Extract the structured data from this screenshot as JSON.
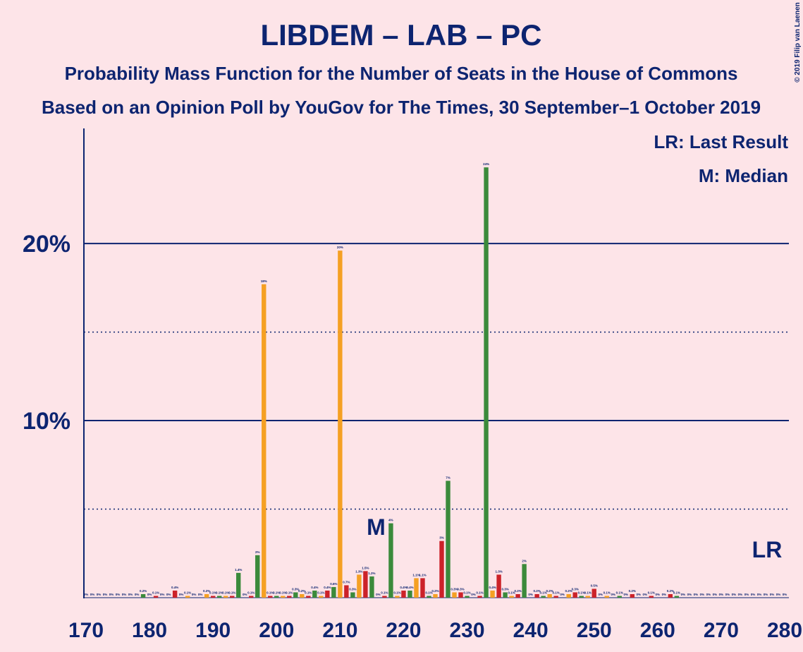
{
  "chart_data": {
    "type": "bar",
    "title": "LIBDEM – LAB – PC",
    "subtitle": "Probability Mass Function for the Number of Seats in the House of Commons",
    "subtitle2": "Based on an Opinion Poll by YouGov for The Times, 30 September–1 October 2019",
    "copyright": "© 2019 Filip van Laenen",
    "legend_lr": "LR: Last Result",
    "legend_median": "M: Median",
    "median": {
      "x": 216,
      "label": "M"
    },
    "last_result": {
      "x": 277,
      "label": "LR"
    },
    "x": [
      170,
      171,
      172,
      173,
      174,
      175,
      176,
      177,
      178,
      179,
      180,
      181,
      182,
      183,
      184,
      185,
      186,
      187,
      188,
      189,
      190,
      191,
      192,
      193,
      194,
      195,
      196,
      197,
      198,
      199,
      200,
      201,
      202,
      203,
      204,
      205,
      206,
      207,
      208,
      209,
      210,
      211,
      212,
      213,
      214,
      215,
      216,
      217,
      218,
      219,
      220,
      221,
      222,
      223,
      224,
      225,
      226,
      227,
      228,
      229,
      230,
      231,
      232,
      233,
      234,
      235,
      236,
      237,
      238,
      239,
      240,
      241,
      242,
      243,
      244,
      245,
      246,
      247,
      248,
      249,
      250,
      251,
      252,
      253,
      254,
      255,
      256,
      257,
      258,
      259,
      260,
      261,
      262,
      263,
      264,
      265,
      266,
      267,
      268,
      269,
      270,
      271,
      272,
      273,
      274,
      275,
      276,
      277,
      278,
      279,
      280
    ],
    "values": [
      0,
      0,
      0,
      0,
      0,
      0,
      0,
      0,
      0,
      0.2,
      0,
      0.1,
      0,
      0,
      0.4,
      0,
      0.1,
      0,
      0,
      0.2,
      0.1,
      0.1,
      0.1,
      0.1,
      1.4,
      0,
      0.1,
      2.4,
      17.7,
      0.1,
      0.1,
      0.1,
      0.1,
      0.3,
      0.2,
      0.1,
      0.4,
      0.1,
      0.4,
      0.6,
      19.6,
      0.7,
      0.3,
      1.3,
      1.5,
      1.2,
      0,
      0.1,
      4.2,
      0.1,
      0.4,
      0.4,
      1.1,
      1.1,
      0.1,
      0.2,
      3.2,
      6.6,
      0.3,
      0.3,
      0.1,
      0,
      0.1,
      24.3,
      0.4,
      1.3,
      0.3,
      0.1,
      0.2,
      1.9,
      0,
      0.2,
      0.1,
      0.2,
      0.1,
      0,
      0.2,
      0.3,
      0.1,
      0.1,
      0.5,
      0,
      0.1,
      0,
      0.1,
      0,
      0.2,
      0,
      0,
      0.1,
      0,
      0,
      0.2,
      0.1,
      0,
      0,
      0,
      0,
      0,
      0,
      0,
      0,
      0,
      0,
      0,
      0,
      0,
      0,
      0,
      0,
      0
    ],
    "value_labels": [
      "0%",
      "0%",
      "0%",
      "0%",
      "0%",
      "0%",
      "0%",
      "0%",
      "0%",
      "0.2%",
      "0%",
      "0.1%",
      "0%",
      "0%",
      "0.4%",
      "0%",
      "0.1%",
      "0%",
      "0%",
      "0.2%",
      "0.1%",
      "0.1%",
      "0.1%",
      "0.1%",
      "1.4%",
      "0%",
      "0.1%",
      "2%",
      "18%",
      "0.1%",
      "0.1%",
      "0.1%",
      "0.1%",
      "0.3%",
      "0.2%",
      "0.1%",
      "0.4%",
      "0.1%",
      "0.4%",
      "0.6%",
      "20%",
      "0.7%",
      "0.3%",
      "1.3%",
      "1.5%",
      "1.2%",
      "0%",
      "0.1%",
      "4%",
      "0.1%",
      "0.4%",
      "0.4%",
      "1.1%",
      "1.1%",
      "0.1%",
      "0.2%",
      "3%",
      "7%",
      "0.3%",
      "0.3%",
      "0.1%",
      "0%",
      "0.1%",
      "24%",
      "0.4%",
      "1.3%",
      "0.3%",
      "0.1%",
      "0.2%",
      "2%",
      "0%",
      "0.2%",
      "0.1%",
      "0.2%",
      "0.1%",
      "0%",
      "0.2%",
      "0.3%",
      "0.1%",
      "0.1%",
      "0.5%",
      "0%",
      "0.1%",
      "0%",
      "0.1%",
      "0%",
      "0.2%",
      "0%",
      "0%",
      "0.1%",
      "0%",
      "0%",
      "0.2%",
      "0.1%",
      "0%",
      "0%",
      "0%",
      "0%",
      "0%",
      "0%",
      "0%",
      "0%",
      "0%",
      "0%",
      "0%",
      "0%",
      "0%",
      "0%",
      "0%",
      "0%",
      "0%"
    ],
    "colors": [
      "#3b8a3b",
      "#f5a023",
      "#cc2229"
    ],
    "xlim": [
      170,
      280
    ],
    "xticks": [
      170,
      180,
      190,
      200,
      210,
      220,
      230,
      240,
      250,
      260,
      270,
      280
    ],
    "ylim": [
      0,
      26.5
    ],
    "yticks": [
      {
        "value": 10,
        "label": "10%"
      },
      {
        "value": 20,
        "label": "20%"
      }
    ],
    "minor_grid": [
      5,
      15
    ]
  }
}
